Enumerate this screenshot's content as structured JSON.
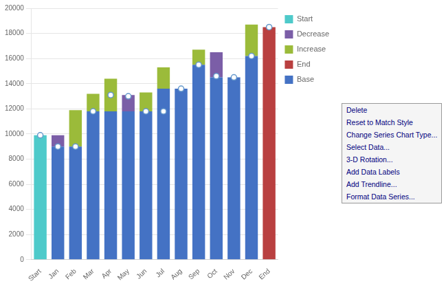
{
  "chart_data": {
    "type": "bar",
    "categories": [
      "Start",
      "Jan",
      "Feb",
      "Mar",
      "Apr",
      "May",
      "Jun",
      "Jul",
      "Aug",
      "Sep",
      "Oct",
      "Nov",
      "Dec",
      "End"
    ],
    "series": [
      {
        "name": "Start",
        "color": "#4ECACA",
        "values": [
          9900,
          0,
          0,
          0,
          0,
          0,
          0,
          0,
          0,
          0,
          0,
          0,
          0,
          0
        ]
      },
      {
        "name": "Decrease",
        "color": "#7B5EA7",
        "values": [
          0,
          900,
          0,
          0,
          0,
          1300,
          0,
          0,
          0,
          0,
          2000,
          0,
          0,
          0
        ]
      },
      {
        "name": "Increase",
        "color": "#9BBB3A",
        "values": [
          0,
          0,
          2900,
          1400,
          2600,
          0,
          1500,
          1700,
          0,
          1200,
          0,
          0,
          2500,
          0
        ]
      },
      {
        "name": "End",
        "color": "#B94040",
        "values": [
          0,
          0,
          0,
          0,
          0,
          0,
          0,
          0,
          0,
          0,
          0,
          0,
          0,
          18500
        ]
      },
      {
        "name": "Base",
        "color": "#4472C4",
        "values": [
          0,
          9000,
          9000,
          11800,
          11800,
          11800,
          11800,
          13600,
          13600,
          15500,
          14500,
          14500,
          16200,
          0
        ]
      },
      {
        "type": "line",
        "color": "#6699CC",
        "marker": "circle",
        "line_style": "none",
        "values": [
          9900,
          9000,
          9000,
          11800,
          13100,
          13000,
          11800,
          11800,
          13600,
          15500,
          14600,
          14500,
          16200,
          18500
        ]
      }
    ],
    "stacked": true,
    "ylim": [
      0,
      20000
    ],
    "yticks": [
      0,
      2000,
      4000,
      6000,
      8000,
      10000,
      12000,
      14000,
      16000,
      18000,
      20000
    ],
    "grid": "y",
    "legend": "right",
    "annotations": [
      "Delete",
      "Reset to Match Style",
      "Change Series Chart Type...",
      "Select Data...",
      "3-D Rotation...",
      "Add Data Labels",
      "Add Trendline...",
      "Format Data Series..."
    ]
  }
}
